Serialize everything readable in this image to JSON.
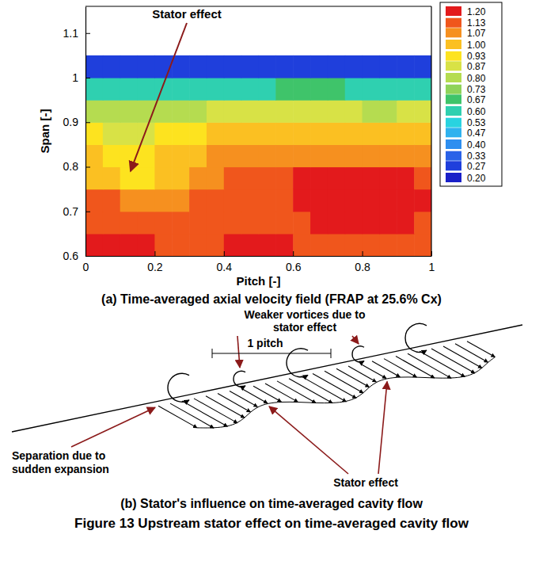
{
  "chart_data": {
    "type": "heatmap",
    "title": "(a) Time-averaged axial velocity field (FRAP at 25.6% Cx)",
    "x_label": "Pitch [-]",
    "y_label": "Span [-]",
    "xlim": [
      0,
      1
    ],
    "xticks": [
      0,
      0.2,
      0.4,
      0.6,
      0.8,
      1
    ],
    "ylim": [
      0.6,
      1.16
    ],
    "yticks": [
      0.6,
      0.7,
      0.8,
      0.9,
      1,
      1.1
    ],
    "x": [
      0.025,
      0.075,
      0.125,
      0.175,
      0.225,
      0.275,
      0.325,
      0.375,
      0.425,
      0.475,
      0.525,
      0.575,
      0.625,
      0.675,
      0.725,
      0.775,
      0.825,
      0.875,
      0.925,
      0.975
    ],
    "y": [
      0.625,
      0.675,
      0.725,
      0.775,
      0.825,
      0.875,
      0.925,
      0.975,
      1.025
    ],
    "values": [
      [
        1.17,
        1.17,
        1.17,
        1.17,
        1.16,
        1.16,
        1.16,
        1.16,
        1.17,
        1.17,
        1.17,
        1.17,
        1.16,
        1.16,
        1.15,
        1.14,
        1.13,
        1.12,
        1.12,
        1.11
      ],
      [
        1.15,
        1.15,
        1.14,
        1.14,
        1.13,
        1.13,
        1.13,
        1.13,
        1.13,
        1.13,
        1.14,
        1.15,
        1.16,
        1.17,
        1.18,
        1.18,
        1.18,
        1.17,
        1.17,
        1.16
      ],
      [
        1.12,
        1.1,
        1.08,
        1.07,
        1.08,
        1.09,
        1.1,
        1.1,
        1.1,
        1.11,
        1.12,
        1.14,
        1.17,
        1.18,
        1.19,
        1.19,
        1.19,
        1.18,
        1.18,
        1.17
      ],
      [
        1.02,
        0.98,
        0.95,
        0.96,
        0.99,
        1.02,
        1.05,
        1.08,
        1.1,
        1.12,
        1.13,
        1.15,
        1.17,
        1.18,
        1.18,
        1.18,
        1.18,
        1.17,
        1.17,
        1.16
      ],
      [
        0.98,
        0.96,
        0.95,
        0.96,
        0.98,
        1.0,
        1.02,
        1.04,
        1.06,
        1.07,
        1.08,
        1.08,
        1.09,
        1.09,
        1.08,
        1.08,
        1.08,
        1.08,
        1.08,
        1.08
      ],
      [
        0.92,
        0.9,
        0.9,
        0.9,
        0.92,
        0.94,
        0.95,
        0.97,
        0.98,
        0.98,
        0.99,
        1.0,
        1.0,
        1.0,
        1.0,
        0.99,
        0.98,
        0.98,
        0.99,
        1.0
      ],
      [
        0.8,
        0.78,
        0.77,
        0.78,
        0.8,
        0.82,
        0.83,
        0.84,
        0.84,
        0.85,
        0.85,
        0.86,
        0.86,
        0.86,
        0.85,
        0.84,
        0.83,
        0.83,
        0.84,
        0.85
      ],
      [
        0.6,
        0.58,
        0.57,
        0.58,
        0.6,
        0.62,
        0.63,
        0.63,
        0.62,
        0.62,
        0.63,
        0.64,
        0.65,
        0.65,
        0.64,
        0.62,
        0.6,
        0.6,
        0.62,
        0.63
      ],
      [
        0.3,
        0.28,
        0.27,
        0.27,
        0.28,
        0.3,
        0.3,
        0.28,
        0.27,
        0.27,
        0.27,
        0.28,
        0.28,
        0.27,
        0.26,
        0.25,
        0.25,
        0.26,
        0.27,
        0.28
      ]
    ],
    "colorbar": {
      "range": [
        0.2,
        1.2
      ],
      "ticks": [
        {
          "value": 0.2,
          "label": "0.20"
        },
        {
          "value": 0.27,
          "label": "0.27"
        },
        {
          "value": 0.33,
          "label": "0.33"
        },
        {
          "value": 0.4,
          "label": "0.40"
        },
        {
          "value": 0.47,
          "label": "0.47"
        },
        {
          "value": 0.53,
          "label": "0.53"
        },
        {
          "value": 0.6,
          "label": "0.60"
        },
        {
          "value": 0.67,
          "label": "0.67"
        },
        {
          "value": 0.73,
          "label": "0.73"
        },
        {
          "value": 0.8,
          "label": "0.80"
        },
        {
          "value": 0.87,
          "label": "0.87"
        },
        {
          "value": 0.93,
          "label": "0.93"
        },
        {
          "value": 1.0,
          "label": "1.00"
        },
        {
          "value": 1.07,
          "label": "1.07"
        },
        {
          "value": 1.13,
          "label": "1.13"
        },
        {
          "value": 1.2,
          "label": "1.20"
        }
      ]
    },
    "annotations": [
      {
        "text": "Stator effect",
        "x": 0.13,
        "y": 0.79
      }
    ]
  },
  "diagram": {
    "caption": "(b) Stator's influence on time-averaged cavity flow",
    "labels": {
      "weaker_vortices": "Weaker vortices due to stator effect",
      "pitch": "1 pitch",
      "separation": "Separation due to sudden expansion",
      "stator_effect": "Stator effect"
    }
  },
  "figure_caption": "Figure 13 Upstream stator effect on time-averaged cavity flow"
}
